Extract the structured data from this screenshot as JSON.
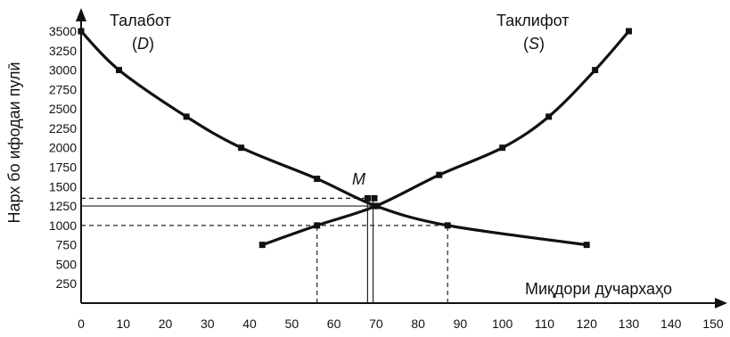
{
  "chart_data": {
    "type": "line",
    "title": "",
    "xlabel": "Миқдори дучархаҳо",
    "ylabel": "Нарх бо ифодаи пулӣ",
    "xlim": [
      0,
      150
    ],
    "ylim": [
      0,
      3500
    ],
    "x_ticks": [
      "0",
      "10",
      "20",
      "30",
      "40",
      "50",
      "60",
      "70",
      "80",
      "90",
      "100",
      "110",
      "120",
      "130",
      "140",
      "150"
    ],
    "y_ticks": [
      "3500",
      "3250",
      "3000",
      "2750",
      "2500",
      "2250",
      "2000",
      "1750",
      "1500",
      "1250",
      "1000",
      "750",
      "500",
      "250"
    ],
    "series": [
      {
        "name": "Талабот",
        "symbol": "D",
        "label_open": "(",
        "label_close": ")",
        "x": [
          0,
          9,
          25,
          38,
          56,
          70,
          87,
          120
        ],
        "y": [
          3500,
          3000,
          2400,
          2000,
          1600,
          1250,
          1000,
          750
        ]
      },
      {
        "name": "Таклифот",
        "symbol": "S",
        "label_open": "(",
        "label_close": ")",
        "x": [
          43,
          56,
          70,
          85,
          100,
          111,
          122,
          130
        ],
        "y": [
          750,
          1000,
          1250,
          1650,
          2000,
          2400,
          3000,
          3500
        ]
      }
    ],
    "equilibrium": {
      "label": "M",
      "x": 70,
      "y": 1250
    },
    "reference_lines": [
      {
        "x1": 0,
        "y1": 1350,
        "x2": 68,
        "y2": 1350,
        "style": "dashed"
      },
      {
        "x1": 0,
        "y1": 1250,
        "x2": 70,
        "y2": 1250,
        "style": "solid"
      },
      {
        "x1": 0,
        "y1": 1000,
        "x2": 87,
        "y2": 1000,
        "style": "dashed"
      },
      {
        "x1": 56,
        "y1": 0,
        "x2": 56,
        "y2": 1000,
        "style": "dashed"
      },
      {
        "x1": 68,
        "y1": 0,
        "x2": 68,
        "y2": 1350,
        "style": "solid"
      },
      {
        "x1": 69.3,
        "y1": 0,
        "x2": 69.3,
        "y2": 1350,
        "style": "solid"
      },
      {
        "x1": 87,
        "y1": 0,
        "x2": 87,
        "y2": 1000,
        "style": "dashed"
      }
    ],
    "grid": false,
    "colors": {
      "line": "#111111",
      "marker": "#111111",
      "guide": "#222222"
    }
  }
}
